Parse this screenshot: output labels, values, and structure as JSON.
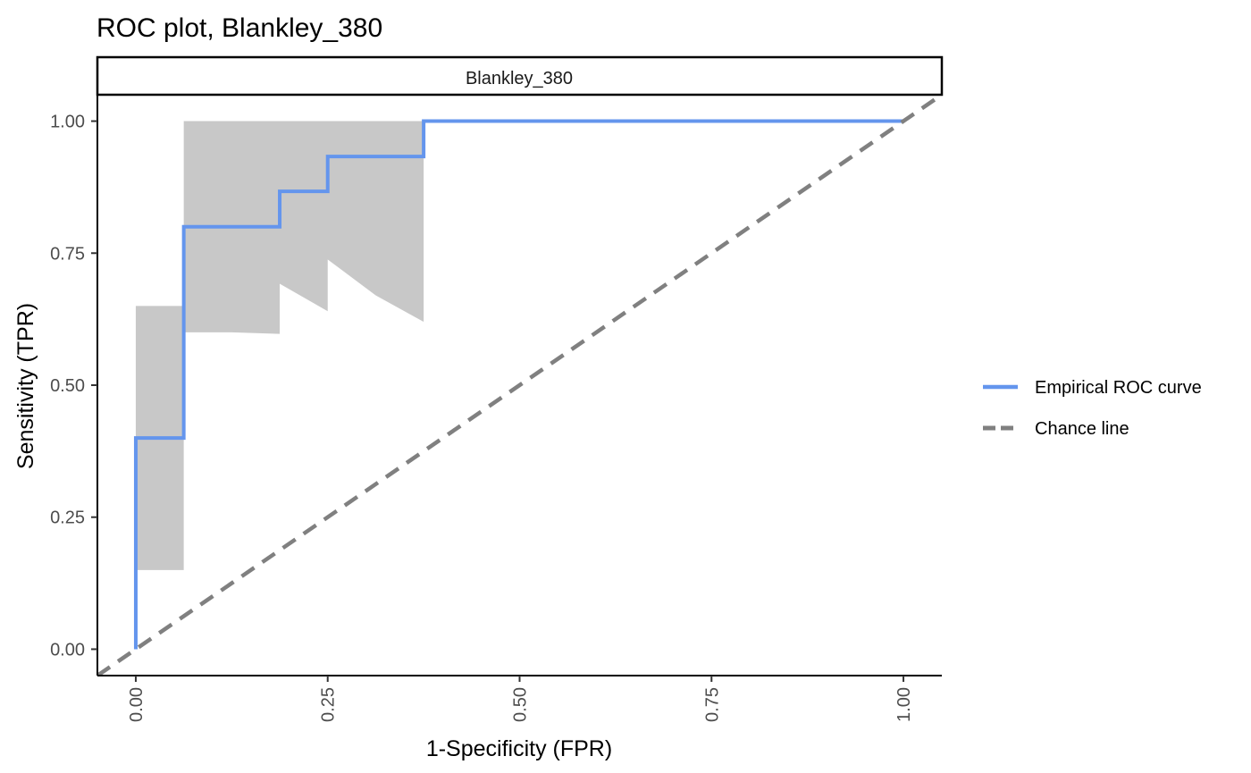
{
  "chart_data": {
    "type": "line",
    "title": "ROC plot, Blankley_380",
    "facet_label": "Blankley_380",
    "xlabel": "1-Specificity (FPR)",
    "ylabel": "Sensitivity (TPR)",
    "xlim": [
      -0.05,
      1.05
    ],
    "ylim": [
      -0.05,
      1.05
    ],
    "x_ticks": [
      0.0,
      0.25,
      0.5,
      0.75,
      1.0
    ],
    "x_tick_labels": [
      "0.00",
      "0.25",
      "0.50",
      "0.75",
      "1.00"
    ],
    "y_ticks": [
      0.0,
      0.25,
      0.5,
      0.75,
      1.0
    ],
    "y_tick_labels": [
      "0.00",
      "0.25",
      "0.50",
      "0.75",
      "1.00"
    ],
    "grid": false,
    "legend_position": "right",
    "colors": {
      "roc": "#6495ED",
      "chance": "#808080",
      "band": "#c8c8c8"
    },
    "series": [
      {
        "name": "Empirical ROC curve",
        "style": "solid",
        "x": [
          0.0,
          0.0,
          0.0625,
          0.0625,
          0.1875,
          0.1875,
          0.25,
          0.25,
          0.375,
          0.375,
          1.0
        ],
        "y": [
          0.0,
          0.4,
          0.4,
          0.8,
          0.8,
          0.867,
          0.867,
          0.933,
          0.933,
          1.0,
          1.0
        ]
      },
      {
        "name": "Chance line",
        "style": "dashed",
        "x": [
          -0.05,
          1.05
        ],
        "y": [
          -0.05,
          1.05
        ]
      }
    ],
    "confidence_band": {
      "x": [
        0.0,
        0.0625,
        0.0625,
        0.125,
        0.1875,
        0.1875,
        0.25,
        0.25,
        0.3125,
        0.375,
        0.375
      ],
      "lower": [
        0.15,
        0.15,
        0.6,
        0.6,
        0.597,
        0.692,
        0.64,
        0.738,
        0.67,
        0.62,
        0.62
      ],
      "upper": [
        0.65,
        0.65,
        1.0,
        1.0,
        1.0,
        1.0,
        1.0,
        1.0,
        1.0,
        1.0,
        1.0
      ]
    }
  }
}
